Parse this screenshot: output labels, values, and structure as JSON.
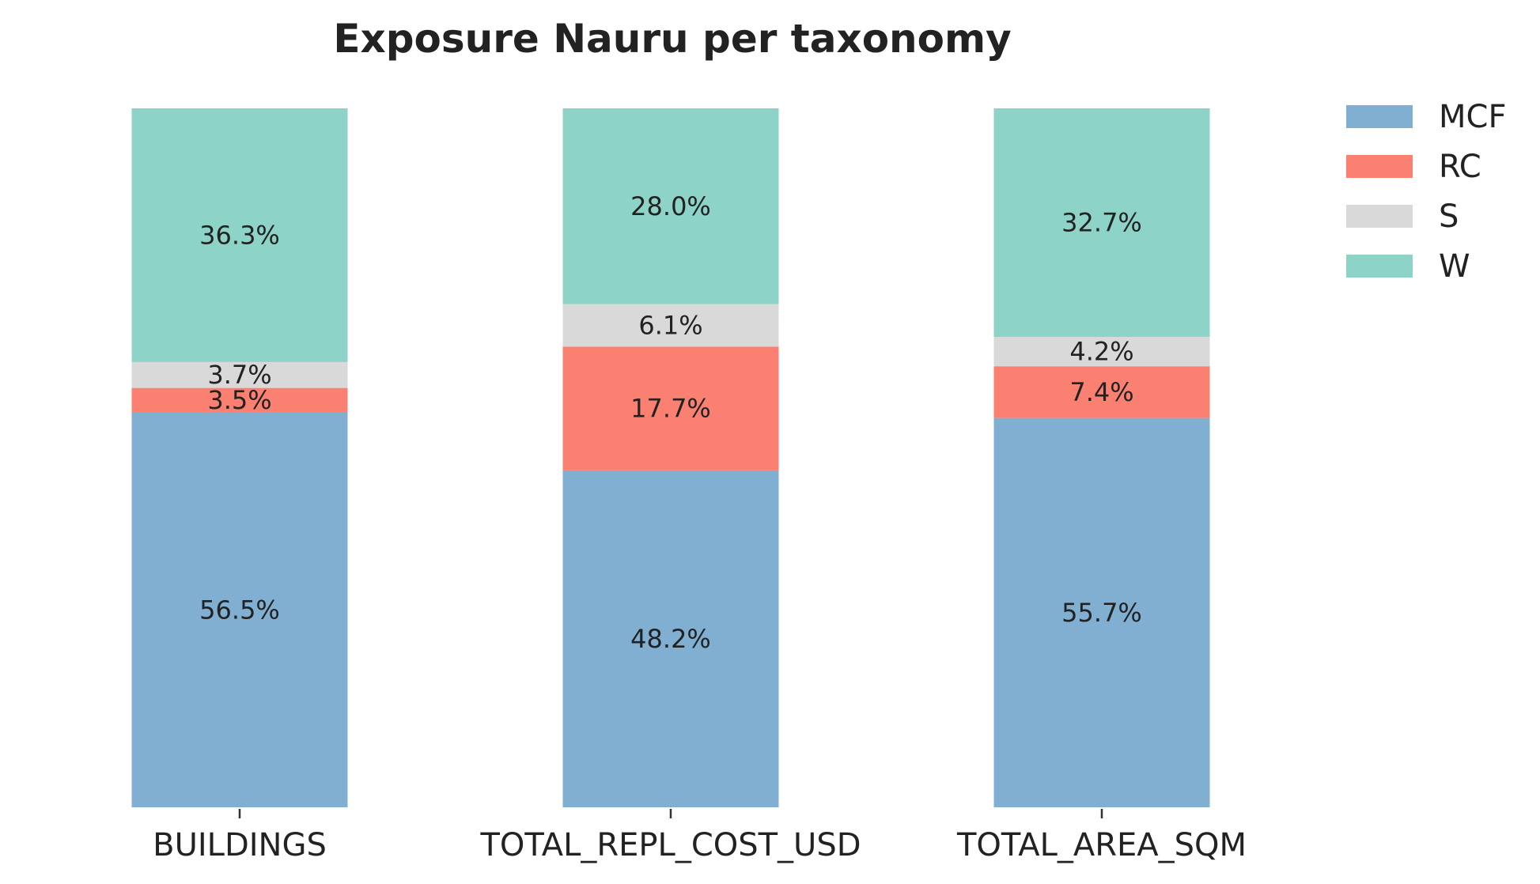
{
  "chart_data": {
    "type": "bar",
    "stacked": true,
    "title": "Exposure Nauru per taxonomy",
    "xlabel": "",
    "ylabel": "",
    "ylim": [
      0,
      100
    ],
    "grid": false,
    "legend_position": "top-right",
    "categories": [
      "BUILDINGS",
      "TOTAL_REPL_COST_USD",
      "TOTAL_AREA_SQM"
    ],
    "series": [
      {
        "name": "MCF",
        "color": "#80afd2",
        "values": [
          56.5,
          48.2,
          55.7
        ]
      },
      {
        "name": "RC",
        "color": "#fa8072",
        "values": [
          3.5,
          17.7,
          7.4
        ]
      },
      {
        "name": "S",
        "color": "#d9d9d9",
        "values": [
          3.7,
          6.1,
          4.2
        ]
      },
      {
        "name": "W",
        "color": "#8dd3c7",
        "values": [
          36.3,
          28.0,
          32.7
        ]
      }
    ],
    "value_format": "%"
  }
}
